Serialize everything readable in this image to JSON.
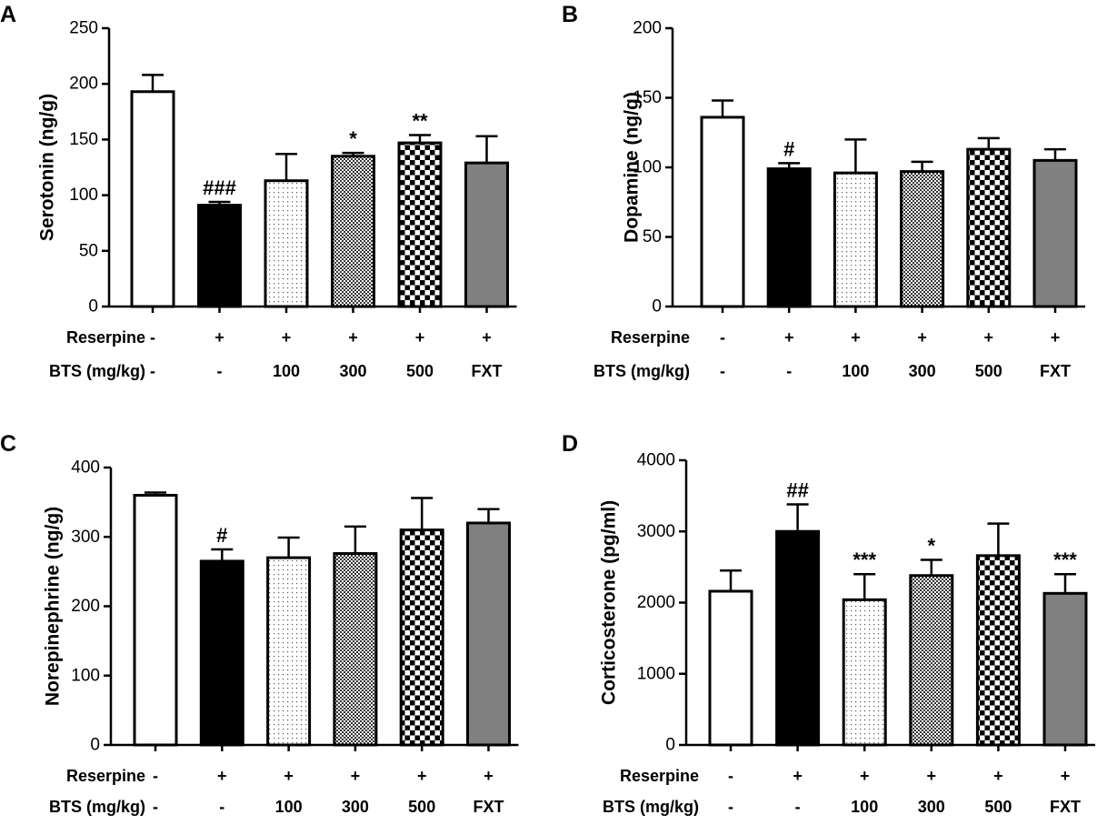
{
  "chart_data": [
    {
      "panel": "A",
      "type": "bar",
      "ylabel": "Serotonin (ng/g)",
      "ylim": [
        0,
        250
      ],
      "yticks": [
        0,
        50,
        100,
        150,
        200,
        250
      ],
      "values": [
        193,
        91,
        113,
        135,
        147,
        129
      ],
      "errors": [
        15,
        3,
        24,
        3,
        7,
        24
      ],
      "annotations": [
        "",
        "###",
        "",
        "*",
        "**",
        ""
      ],
      "reserpine": [
        "-",
        "+",
        "+",
        "+",
        "+",
        "+"
      ],
      "bts": [
        "-",
        "-",
        "100",
        "300",
        "500",
        "FXT"
      ],
      "reserpine_label": "Reserpine",
      "bts_label": "BTS (mg/kg)"
    },
    {
      "panel": "B",
      "type": "bar",
      "ylabel": "Dopamine (ng/g)",
      "ylim": [
        0,
        200
      ],
      "yticks": [
        0,
        50,
        100,
        150,
        200
      ],
      "values": [
        136,
        99,
        96,
        97,
        113,
        105
      ],
      "errors": [
        12,
        4,
        24,
        7,
        8,
        8
      ],
      "annotations": [
        "",
        "#",
        "",
        "",
        "",
        ""
      ],
      "reserpine": [
        "-",
        "+",
        "+",
        "+",
        "+",
        "+"
      ],
      "bts": [
        "-",
        "-",
        "100",
        "300",
        "500",
        "FXT"
      ],
      "reserpine_label": "Reserpine",
      "bts_label": "BTS (mg/kg)"
    },
    {
      "panel": "C",
      "type": "bar",
      "ylabel": "Norepinephrine (ng/g)",
      "ylim": [
        0,
        400
      ],
      "yticks": [
        0,
        100,
        200,
        300,
        400
      ],
      "values": [
        360,
        265,
        270,
        276,
        310,
        320
      ],
      "errors": [
        4,
        17,
        29,
        39,
        46,
        20
      ],
      "annotations": [
        "",
        "#",
        "",
        "",
        "",
        ""
      ],
      "reserpine": [
        "-",
        "+",
        "+",
        "+",
        "+",
        "+"
      ],
      "bts": [
        "-",
        "-",
        "100",
        "300",
        "500",
        "FXT"
      ],
      "reserpine_label": "Reserpine",
      "bts_label": "BTS (mg/kg)"
    },
    {
      "panel": "D",
      "type": "bar",
      "ylabel": "Corticosterone (pg/ml)",
      "ylim": [
        0,
        4000
      ],
      "yticks": [
        0,
        1000,
        2000,
        3000,
        4000
      ],
      "values": [
        2160,
        3000,
        2040,
        2380,
        2660,
        2130
      ],
      "errors": [
        290,
        380,
        360,
        220,
        450,
        270
      ],
      "annotations": [
        "",
        "##",
        "***",
        "*",
        "",
        "***"
      ],
      "reserpine": [
        "-",
        "+",
        "+",
        "+",
        "+",
        "+"
      ],
      "bts": [
        "-",
        "-",
        "100",
        "300",
        "500",
        "FXT"
      ],
      "reserpine_label": "Reserpine",
      "bts_label": "BTS (mg/kg)"
    }
  ],
  "colors": {
    "axis": "#000000",
    "control_fill": "#ffffff",
    "reserpine_fill": "#000000",
    "fxt_fill": "#808080",
    "pattern_ink": "#000000"
  }
}
